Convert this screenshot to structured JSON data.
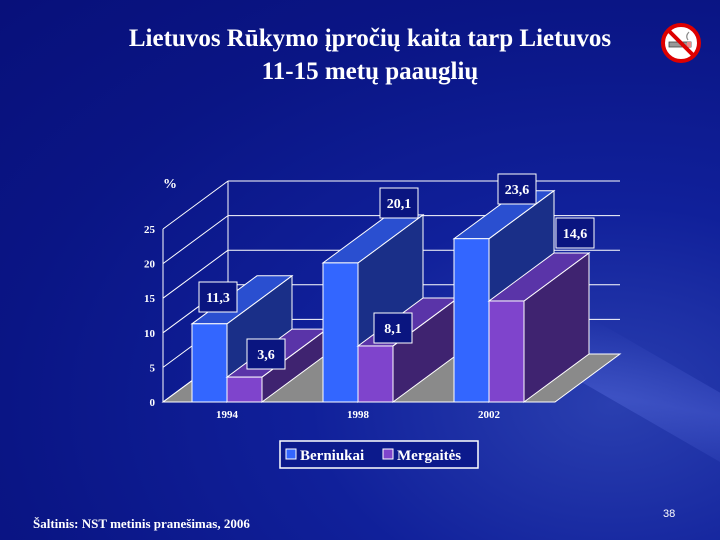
{
  "slide": {
    "title_line1": "Lietuvos Rūkymo įpročių kaita tarp Lietuvos",
    "title_line2": "11-15 metų paauglių",
    "source": "Šaltinis: NST metinis pranešimas, 2006",
    "page_number": "38",
    "icon": "no-smoking-icon"
  },
  "chart_data": {
    "type": "bar",
    "style": "3d-clustered",
    "ylabel": "%",
    "categories": [
      "1994",
      "1998",
      "2002"
    ],
    "ylim": [
      0,
      25
    ],
    "yticks": [
      "0",
      "5",
      "10",
      "15",
      "20",
      "25"
    ],
    "grid": true,
    "legend_position": "bottom",
    "series": [
      {
        "name": "Berniukai",
        "values": [
          11.3,
          20.1,
          23.6
        ],
        "labels": [
          "11,3",
          "20,1",
          "23,6"
        ],
        "color": "#3366ff"
      },
      {
        "name": "Mergaitės",
        "values": [
          3.6,
          8.1,
          14.6
        ],
        "labels": [
          "3,6",
          "8,1",
          "14,6"
        ],
        "color": "#7f44cc"
      }
    ]
  }
}
